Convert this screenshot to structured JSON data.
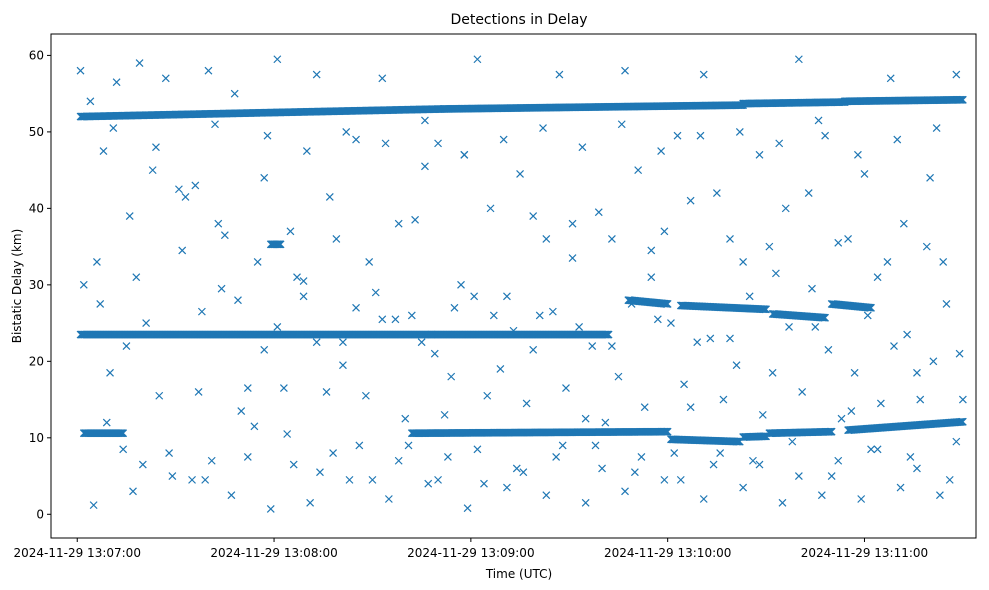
{
  "chart_data": {
    "type": "scatter",
    "title": "Detections in Delay",
    "xlabel": "Time (UTC)",
    "ylabel": "Bistatic Delay (km)",
    "x_unit": "seconds after 2024-11-29 13:06:00 UTC",
    "xlim": [
      52,
      334
    ],
    "ylim": [
      -3.1,
      62.8
    ],
    "xticks": [
      60,
      120,
      180,
      240,
      300
    ],
    "xtick_labels": [
      "2024-11-29 13:07:00",
      "2024-11-29 13:08:00",
      "2024-11-29 13:09:00",
      "2024-11-29 13:10:00",
      "2024-11-29 13:11:00"
    ],
    "yticks": [
      0,
      10,
      20,
      30,
      40,
      50,
      60
    ],
    "ytick_labels": [
      "0",
      "10",
      "20",
      "30",
      "40",
      "50",
      "60"
    ],
    "marker": "x",
    "color": "#1f77b4",
    "grid": false,
    "tracks": [
      {
        "x": [
          61,
          172
        ],
        "y": [
          52.0,
          53.0
        ]
      },
      {
        "x": [
          172,
          263
        ],
        "y": [
          53.0,
          53.5
        ]
      },
      {
        "x": [
          263,
          294
        ],
        "y": [
          53.7,
          53.9
        ]
      },
      {
        "x": [
          294,
          330
        ],
        "y": [
          54.0,
          54.2
        ]
      },
      {
        "x": [
          61,
          168
        ],
        "y": [
          23.5,
          23.5
        ]
      },
      {
        "x": [
          168,
          222
        ],
        "y": [
          23.5,
          23.5
        ]
      },
      {
        "x": [
          228,
          240
        ],
        "y": [
          28.0,
          27.5
        ]
      },
      {
        "x": [
          244,
          270
        ],
        "y": [
          27.3,
          26.8
        ]
      },
      {
        "x": [
          272,
          288
        ],
        "y": [
          26.2,
          25.7
        ]
      },
      {
        "x": [
          290,
          302
        ],
        "y": [
          27.5,
          27.0
        ]
      },
      {
        "x": [
          119,
          122
        ],
        "y": [
          35.3,
          35.3
        ]
      },
      {
        "x": [
          62,
          74
        ],
        "y": [
          10.6,
          10.6
        ]
      },
      {
        "x": [
          162,
          240
        ],
        "y": [
          10.6,
          10.8
        ]
      },
      {
        "x": [
          241,
          262
        ],
        "y": [
          9.8,
          9.5
        ]
      },
      {
        "x": [
          263,
          270
        ],
        "y": [
          10.1,
          10.2
        ]
      },
      {
        "x": [
          271,
          290
        ],
        "y": [
          10.6,
          10.8
        ]
      },
      {
        "x": [
          295,
          330
        ],
        "y": [
          11.0,
          12.1
        ]
      }
    ],
    "series": [
      {
        "x": [
          61,
          64,
          68,
          72,
          76,
          79,
          83,
          87,
          92,
          96,
          100,
          104,
          108,
          112,
          117,
          121,
          125,
          129,
          133,
          137,
          141,
          145,
          149,
          153,
          158,
          162,
          166,
          170,
          174,
          178,
          182,
          186,
          191,
          195,
          199,
          203,
          207,
          211,
          215,
          219,
          223,
          227,
          231,
          235,
          239,
          243,
          247,
          251,
          255,
          259,
          263,
          268,
          272,
          276,
          280,
          284,
          288,
          292,
          296,
          300,
          304,
          308,
          312,
          316,
          320,
          324,
          328,
          66,
          78,
          91,
          103,
          115,
          127,
          139,
          151,
          163,
          175,
          187,
          199,
          211,
          223,
          235,
          247,
          259,
          271,
          283,
          295,
          307,
          319,
          329,
          62,
          70,
          81,
          93,
          105,
          117,
          129,
          141,
          153,
          165,
          177,
          189,
          201,
          213,
          225,
          237,
          249,
          261,
          273,
          285,
          297,
          309,
          321,
          330,
          69,
          85,
          97,
          110,
          123,
          136,
          148,
          160,
          172,
          185,
          197,
          209,
          221,
          233,
          245,
          257,
          269,
          281,
          293,
          305,
          317,
          74,
          89,
          101,
          114,
          126,
          138,
          150,
          161,
          173,
          184,
          196,
          208,
          220,
          232,
          244,
          256,
          268,
          280,
          292,
          304,
          316,
          328,
          65,
          77,
          95,
          107,
          119,
          131,
          143,
          155,
          167,
          179,
          191,
          203,
          215,
          227,
          239,
          251,
          263,
          275,
          287,
          299,
          311,
          323,
          80,
          88,
          99,
          112,
          124,
          134,
          146,
          158,
          170,
          182,
          194,
          206,
          218,
          230,
          242,
          254,
          266,
          278,
          290,
          302,
          314,
          326,
          67,
          75,
          98,
          109,
          121,
          133,
          145,
          157,
          169,
          181,
          193,
          205,
          217,
          229,
          241,
          253,
          265,
          277,
          289,
          301,
          313,
          325,
          71,
          84,
          102,
          118,
          130,
          142,
          154,
          166,
          178,
          190,
          202,
          214,
          226,
          238,
          250,
          262,
          274,
          286,
          298,
          310,
          322
        ],
        "y": [
          58.0,
          54.0,
          47.5,
          56.5,
          39.0,
          59.0,
          45.0,
          57.0,
          34.5,
          43.0,
          58.0,
          29.5,
          55.0,
          16.5,
          44.0,
          59.5,
          37.0,
          30.5,
          57.5,
          41.5,
          22.5,
          49.0,
          33.0,
          57.0,
          38.0,
          26.0,
          45.5,
          48.5,
          18.0,
          47.0,
          59.5,
          40.0,
          28.5,
          44.5,
          21.5,
          36.0,
          57.5,
          33.5,
          12.5,
          39.5,
          22.0,
          58.0,
          45.0,
          31.0,
          37.0,
          49.5,
          14.0,
          57.5,
          42.0,
          23.0,
          33.0,
          47.0,
          18.5,
          40.0,
          59.5,
          29.5,
          49.5,
          35.5,
          13.5,
          44.5,
          31.0,
          57.0,
          38.0,
          18.5,
          44.0,
          33.0,
          57.5,
          33.0,
          31.0,
          42.5,
          38.0,
          33.0,
          31.0,
          36.0,
          29.0,
          38.5,
          27.0,
          26.0,
          39.0,
          38.0,
          36.0,
          34.5,
          41.0,
          36.0,
          35.0,
          42.0,
          36.0,
          33.0,
          35.0,
          21.0,
          30.0,
          18.5,
          25.0,
          41.5,
          36.5,
          21.5,
          28.5,
          19.5,
          25.5,
          22.5,
          30.0,
          19.0,
          26.0,
          24.5,
          18.0,
          25.5,
          22.5,
          19.5,
          31.5,
          24.5,
          18.5,
          22.0,
          20.0,
          15.0,
          12.0,
          15.5,
          16.0,
          13.5,
          16.5,
          16.0,
          15.5,
          12.5,
          13.0,
          15.5,
          14.5,
          16.5,
          12.0,
          14.0,
          17.0,
          15.0,
          13.0,
          16.0,
          12.5,
          14.5,
          15.0,
          8.5,
          5.0,
          7.0,
          11.5,
          6.5,
          8.0,
          4.5,
          9.0,
          7.5,
          4.0,
          5.5,
          9.0,
          6.0,
          7.5,
          4.5,
          8.0,
          6.5,
          5.0,
          7.0,
          8.5,
          6.0,
          9.5,
          1.2,
          3.0,
          4.5,
          2.5,
          0.7,
          1.5,
          4.5,
          2.0,
          4.0,
          0.8,
          3.5,
          2.5,
          1.5,
          3.0,
          4.5,
          2.0,
          3.5,
          1.5,
          2.5,
          2.0,
          3.5,
          2.5,
          6.5,
          8.0,
          4.5,
          7.5,
          10.5,
          5.5,
          9.0,
          7.0,
          4.5,
          8.5,
          6.0,
          7.5,
          9.0,
          5.5,
          8.0,
          6.5,
          7.0,
          9.5,
          5.0,
          8.5,
          7.5,
          4.5,
          27.5,
          22.0,
          26.5,
          28.0,
          24.5,
          22.5,
          27.0,
          25.5,
          21.0,
          28.5,
          24.0,
          26.5,
          22.0,
          27.5,
          25.0,
          23.0,
          28.5,
          24.5,
          21.5,
          26.0,
          23.5,
          27.5,
          50.5,
          48.0,
          51.0,
          49.5,
          47.5,
          50.0,
          48.5,
          51.5,
          47.0,
          49.0,
          50.5,
          48.0,
          51.0,
          47.5,
          49.5,
          50.0,
          48.5,
          51.5,
          47.0,
          49.0,
          50.5
        ]
      }
    ]
  }
}
